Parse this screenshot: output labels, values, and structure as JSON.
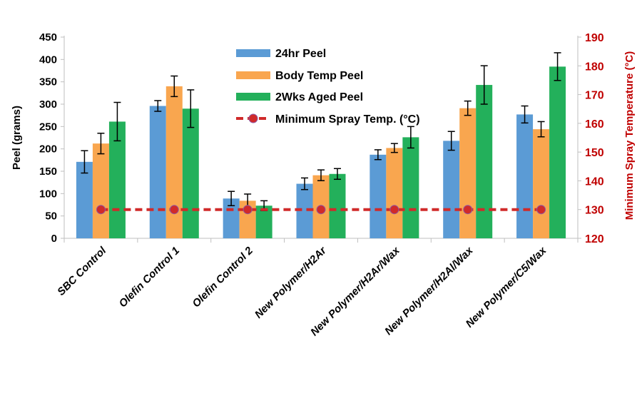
{
  "chart_data": {
    "type": "bar",
    "categories": [
      "SBC Control",
      "Olefin Control 1",
      "Olefin Control 2",
      "New Polymer/H2Ar",
      "New Polymer/H2Ar/Wax",
      "New Polymer/H2Al/Wax",
      "New Polymer/C5/Wax"
    ],
    "series": [
      {
        "name": "24hr Peel",
        "color": "#5b9bd5",
        "values": [
          171,
          296,
          89,
          122,
          187,
          218,
          277
        ],
        "errors": [
          25,
          12,
          16,
          13,
          11,
          21,
          19
        ]
      },
      {
        "name": "Body Temp Peel",
        "color": "#f9a64f",
        "values": [
          212,
          340,
          84,
          141,
          202,
          291,
          244
        ],
        "errors": [
          23,
          23,
          15,
          12,
          10,
          16,
          17
        ]
      },
      {
        "name": "2Wks Aged Peel",
        "color": "#23b05b",
        "values": [
          261,
          290,
          73,
          144,
          226,
          343,
          384
        ],
        "errors": [
          43,
          42,
          11,
          12,
          24,
          43,
          31
        ]
      }
    ],
    "line_series": {
      "name": "Minimum Spray Temp. (°C)",
      "color": "#d02a2a",
      "axis": "right",
      "values": [
        130,
        130,
        130,
        130,
        130,
        130,
        130
      ]
    },
    "ylabel": "Peel (grams)",
    "ylim": [
      0,
      450
    ],
    "yticks": [
      0,
      50,
      100,
      150,
      200,
      250,
      300,
      350,
      400,
      450
    ],
    "y2label": "Minimum Spray Temperature (°C)",
    "y2lim": [
      120,
      190
    ],
    "y2ticks": [
      120,
      130,
      140,
      150,
      160,
      170,
      180,
      190
    ],
    "y2_color": "#c00000",
    "grid": false,
    "legend_position": "top-center"
  }
}
